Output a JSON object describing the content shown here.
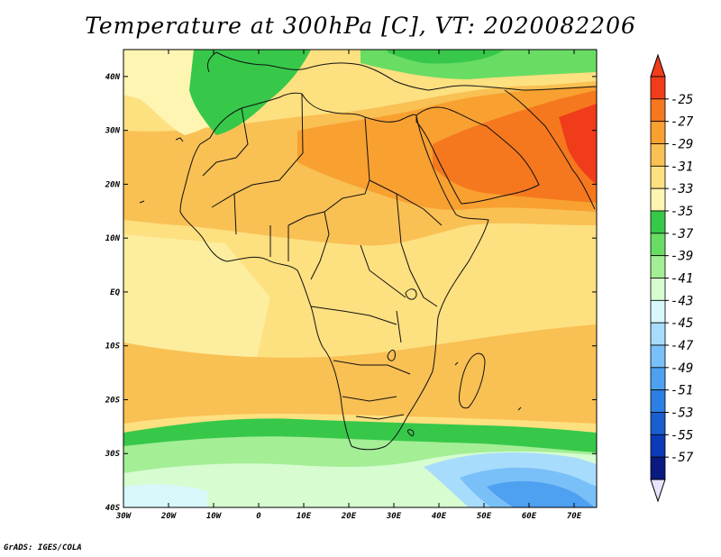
{
  "title": "Temperature at 300hPa [C], VT: 2020082206",
  "credit": "GrADS: IGES/COLA",
  "map": {
    "lon_range": [
      -30,
      75
    ],
    "lat_range": [
      -40,
      45
    ],
    "lon_ticks": [
      {
        "value": -30,
        "label": "30W"
      },
      {
        "value": -20,
        "label": "20W"
      },
      {
        "value": -10,
        "label": "10W"
      },
      {
        "value": 0,
        "label": "0"
      },
      {
        "value": 10,
        "label": "10E"
      },
      {
        "value": 20,
        "label": "20E"
      },
      {
        "value": 30,
        "label": "30E"
      },
      {
        "value": 40,
        "label": "40E"
      },
      {
        "value": 50,
        "label": "50E"
      },
      {
        "value": 60,
        "label": "60E"
      },
      {
        "value": 70,
        "label": "70E"
      }
    ],
    "lat_ticks": [
      {
        "value": 40,
        "label": "40N"
      },
      {
        "value": 30,
        "label": "30N"
      },
      {
        "value": 20,
        "label": "20N"
      },
      {
        "value": 10,
        "label": "10N"
      },
      {
        "value": 0,
        "label": "EQ"
      },
      {
        "value": -10,
        "label": "10S"
      },
      {
        "value": -20,
        "label": "20S"
      },
      {
        "value": -30,
        "label": "30S"
      },
      {
        "value": -40,
        "label": "40S"
      }
    ]
  },
  "colorbar": {
    "labels": [
      "-25",
      "-27",
      "-29",
      "-31",
      "-33",
      "-35",
      "-37",
      "-39",
      "-41",
      "-43",
      "-45",
      "-47",
      "-49",
      "-51",
      "-53",
      "-55",
      "-57"
    ],
    "colors": [
      "#f03c1a",
      "#f5781e",
      "#f8a030",
      "#f9c054",
      "#fde080",
      "#fef5b2",
      "#37c84a",
      "#69dc64",
      "#a4ee96",
      "#d6fcd0",
      "#d8f8fc",
      "#a8dcfc",
      "#7ac0f8",
      "#4ea0f0",
      "#2c80e4",
      "#1a5ed0",
      "#0c3ab8",
      "#0a1a80"
    ],
    "arrow_top_color": "#f03c1a",
    "arrow_bottom_color": "#e8e4ff"
  }
}
